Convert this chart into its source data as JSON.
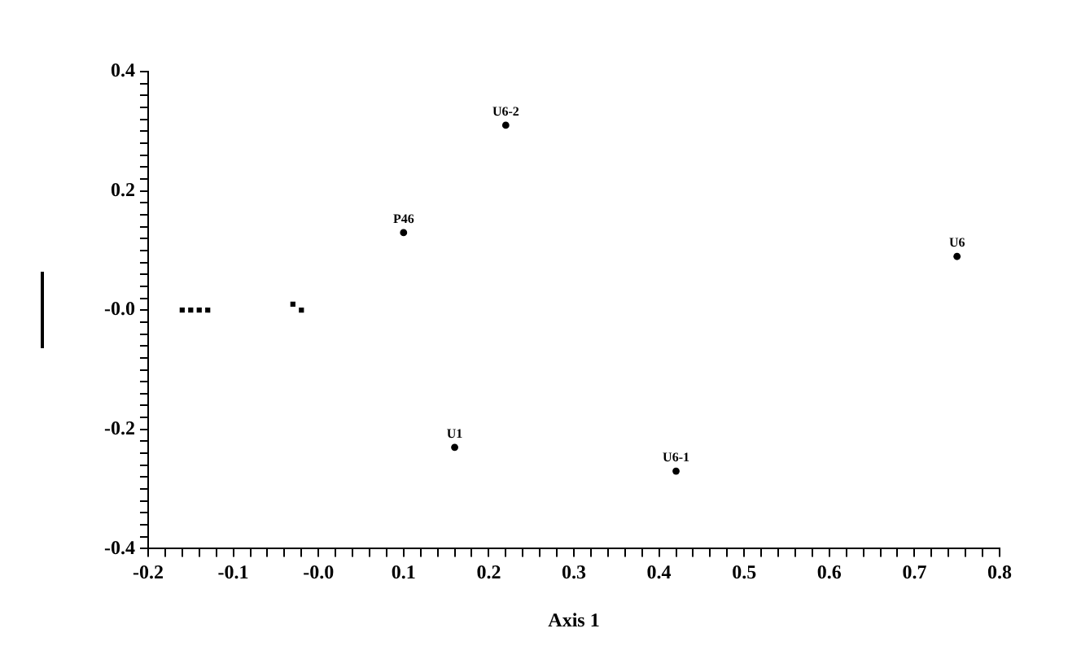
{
  "chart_data": {
    "type": "scatter",
    "xlabel": "Axis 1",
    "xlim": [
      -0.2,
      0.8
    ],
    "ylim": [
      -0.4,
      0.4
    ],
    "grid": false,
    "legend": false,
    "xticks": [
      -0.2,
      {
        "value": -0.18,
        "label": null
      },
      {
        "value": -0.16,
        "label": null
      },
      {
        "value": -0.14,
        "label": null
      },
      {
        "value": -0.12,
        "label": null
      },
      -0.1,
      {
        "value": -0.08,
        "label": null
      },
      {
        "value": -0.06,
        "label": null
      },
      {
        "value": -0.04,
        "label": null
      },
      {
        "value": -0.02,
        "label": null
      },
      {
        "value": 0,
        "label": "-0.0"
      },
      {
        "value": 0.02,
        "label": null
      },
      {
        "value": 0.04,
        "label": null
      },
      {
        "value": 0.06,
        "label": null
      },
      {
        "value": 0.08,
        "label": null
      },
      0.1,
      {
        "value": 0.12,
        "label": null
      },
      {
        "value": 0.14,
        "label": null
      },
      {
        "value": 0.16,
        "label": null
      },
      {
        "value": 0.18,
        "label": null
      },
      0.2,
      {
        "value": 0.22,
        "label": null
      },
      {
        "value": 0.24,
        "label": null
      },
      {
        "value": 0.26,
        "label": null
      },
      {
        "value": 0.28,
        "label": null
      },
      0.3,
      {
        "value": 0.32,
        "label": null
      },
      {
        "value": 0.34,
        "label": null
      },
      {
        "value": 0.36,
        "label": null
      },
      {
        "value": 0.38,
        "label": null
      },
      0.4,
      {
        "value": 0.42,
        "label": null
      },
      {
        "value": 0.44,
        "label": null
      },
      {
        "value": 0.46,
        "label": null
      },
      {
        "value": 0.48,
        "label": null
      },
      0.5,
      {
        "value": 0.52,
        "label": null
      },
      {
        "value": 0.54,
        "label": null
      },
      {
        "value": 0.56,
        "label": null
      },
      {
        "value": 0.58,
        "label": null
      },
      0.6,
      {
        "value": 0.62,
        "label": null
      },
      {
        "value": 0.64,
        "label": null
      },
      {
        "value": 0.66,
        "label": null
      },
      {
        "value": 0.68,
        "label": null
      },
      0.7,
      {
        "value": 0.72,
        "label": null
      },
      {
        "value": 0.74,
        "label": null
      },
      {
        "value": 0.76,
        "label": null
      },
      {
        "value": 0.78,
        "label": null
      },
      0.8
    ],
    "yticks": [
      -0.4,
      {
        "value": -0.38,
        "label": null
      },
      {
        "value": -0.36,
        "label": null
      },
      {
        "value": -0.34,
        "label": null
      },
      {
        "value": -0.32,
        "label": null
      },
      {
        "value": -0.3,
        "label": null
      },
      {
        "value": -0.28,
        "label": null
      },
      {
        "value": -0.26,
        "label": null
      },
      {
        "value": -0.24,
        "label": null
      },
      {
        "value": -0.22,
        "label": null
      },
      -0.2,
      {
        "value": -0.18,
        "label": null
      },
      {
        "value": -0.16,
        "label": null
      },
      {
        "value": -0.14,
        "label": null
      },
      {
        "value": -0.12,
        "label": null
      },
      {
        "value": -0.1,
        "label": null
      },
      {
        "value": -0.08,
        "label": null
      },
      {
        "value": -0.06,
        "label": null
      },
      {
        "value": -0.04,
        "label": null
      },
      {
        "value": -0.02,
        "label": null
      },
      {
        "value": 0,
        "label": "-0.0"
      },
      {
        "value": 0.02,
        "label": null
      },
      {
        "value": 0.04,
        "label": null
      },
      {
        "value": 0.06,
        "label": null
      },
      {
        "value": 0.08,
        "label": null
      },
      {
        "value": 0.1,
        "label": null
      },
      {
        "value": 0.12,
        "label": null
      },
      {
        "value": 0.14,
        "label": null
      },
      {
        "value": 0.16,
        "label": null
      },
      {
        "value": 0.18,
        "label": null
      },
      0.2,
      {
        "value": 0.22,
        "label": null
      },
      {
        "value": 0.24,
        "label": null
      },
      {
        "value": 0.26,
        "label": null
      },
      {
        "value": 0.28,
        "label": null
      },
      {
        "value": 0.3,
        "label": null
      },
      {
        "value": 0.32,
        "label": null
      },
      {
        "value": 0.34,
        "label": null
      },
      {
        "value": 0.36,
        "label": null
      },
      {
        "value": 0.38,
        "label": null
      },
      0.4
    ],
    "series": [
      {
        "color": "#000000",
        "marker": "circle",
        "x": [
          0.22,
          0.1,
          0.75,
          0.16,
          0.42
        ],
        "values": [
          0.31,
          0.13,
          0.09,
          -0.23,
          -0.27
        ]
      },
      {
        "color": "#000000",
        "marker": "square",
        "x": [
          -0.16,
          -0.15,
          -0.14,
          -0.13,
          -0.03,
          -0.02
        ],
        "values": [
          0,
          0,
          0,
          0,
          0.01,
          0
        ]
      }
    ],
    "annotations": [
      {
        "text": "U6-2",
        "x": 0.22,
        "y": 0.31
      },
      {
        "text": "P46",
        "x": 0.1,
        "y": 0.13
      },
      {
        "text": "U6",
        "x": 0.75,
        "y": 0.09
      },
      {
        "text": "U1",
        "x": 0.16,
        "y": -0.23
      },
      {
        "text": "U6-1",
        "x": 0.42,
        "y": -0.27
      }
    ]
  }
}
